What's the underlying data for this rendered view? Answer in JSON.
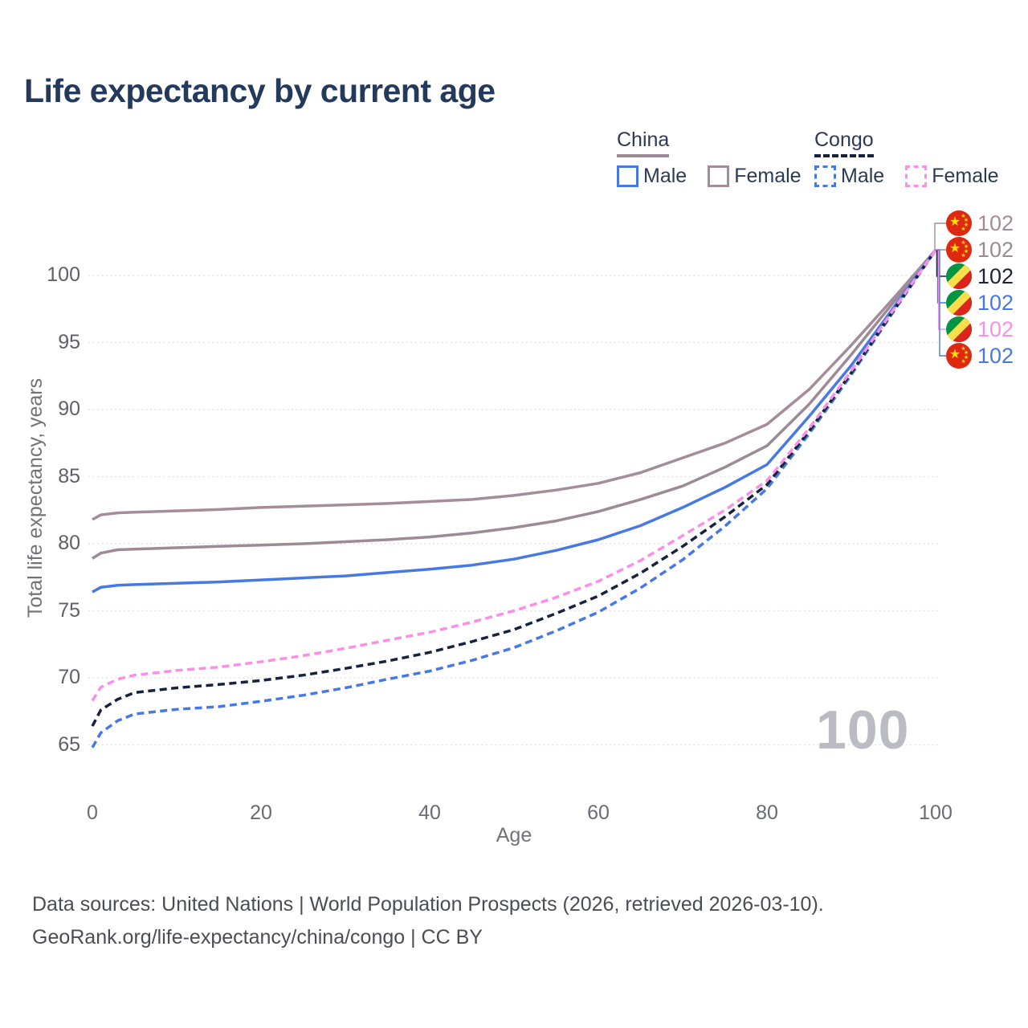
{
  "title": "Life expectancy by current age",
  "legend": {
    "groups": [
      {
        "label": "China",
        "line_style": "solid",
        "line_color": "#9c8a95",
        "items": [
          {
            "label": "Male",
            "color": "#4679e4",
            "dashed": false
          },
          {
            "label": "Female",
            "color": "#a48c9b",
            "dashed": false
          }
        ]
      },
      {
        "label": "Congo",
        "line_style": "dashed",
        "line_color": "#16233f",
        "items": [
          {
            "label": "Male",
            "color": "#4679e4",
            "dashed": true
          },
          {
            "label": "Female",
            "color": "#fa8fe8",
            "dashed": true
          }
        ]
      }
    ]
  },
  "watermark": "100",
  "footer": {
    "line1": "Data sources: United Nations | World Population Prospects (2026, retrieved 2026-03-10).",
    "line2": "GeoRank.org/life-expectancy/china/congo | CC BY"
  },
  "chart_data": {
    "type": "line",
    "title": "Life expectancy by current age",
    "xlabel": "Age",
    "ylabel": "Total life expectancy, years",
    "x_ticks": [
      0,
      20,
      40,
      60,
      80,
      100
    ],
    "y_ticks": [
      65,
      70,
      75,
      80,
      85,
      90,
      95,
      100
    ],
    "xlim": [
      0,
      100
    ],
    "ylim": [
      63,
      103
    ],
    "grid": "horizontal-dotted",
    "legend_position": "top-right",
    "x": [
      0,
      1,
      3,
      5,
      10,
      15,
      20,
      25,
      30,
      35,
      40,
      45,
      50,
      55,
      60,
      65,
      70,
      75,
      80,
      85,
      90,
      95,
      100
    ],
    "series": [
      {
        "name": "China Female",
        "country": "China",
        "group": "Female",
        "color": "#a48c9b",
        "dashed": false,
        "values": [
          81.8,
          82.15,
          82.3,
          82.35,
          82.45,
          82.55,
          82.7,
          82.8,
          82.9,
          83.0,
          83.15,
          83.3,
          83.6,
          84.0,
          84.5,
          85.3,
          86.4,
          87.5,
          88.9,
          91.5,
          94.8,
          98.3,
          101.9
        ]
      },
      {
        "name": "China Both sexes",
        "country": "China",
        "group": "Both",
        "color": "#9c8a95",
        "dashed": false,
        "values": [
          78.9,
          79.3,
          79.55,
          79.6,
          79.7,
          79.8,
          79.9,
          80.0,
          80.15,
          80.3,
          80.5,
          80.8,
          81.2,
          81.7,
          82.4,
          83.3,
          84.3,
          85.7,
          87.3,
          90.4,
          94.1,
          98.0,
          101.9
        ]
      },
      {
        "name": "China Male",
        "country": "China",
        "group": "Male",
        "color": "#4679e4",
        "dashed": false,
        "values": [
          76.4,
          76.75,
          76.9,
          76.95,
          77.05,
          77.15,
          77.3,
          77.45,
          77.6,
          77.85,
          78.1,
          78.4,
          78.85,
          79.5,
          80.3,
          81.35,
          82.7,
          84.2,
          85.9,
          89.5,
          93.3,
          97.6,
          101.9
        ]
      },
      {
        "name": "Congo Female",
        "country": "Congo",
        "group": "Female",
        "color": "#fa8fe8",
        "dashed": true,
        "values": [
          68.3,
          69.3,
          69.9,
          70.2,
          70.55,
          70.8,
          71.2,
          71.65,
          72.2,
          72.8,
          73.4,
          74.15,
          75.0,
          76.0,
          77.2,
          78.75,
          80.6,
          82.5,
          84.7,
          88.6,
          92.9,
          97.45,
          101.9
        ]
      },
      {
        "name": "Congo Both sexes",
        "country": "Congo",
        "group": "Both",
        "color": "#16233f",
        "dashed": true,
        "values": [
          66.4,
          67.6,
          68.4,
          68.9,
          69.25,
          69.5,
          69.8,
          70.2,
          70.7,
          71.25,
          71.9,
          72.7,
          73.6,
          74.8,
          76.1,
          77.8,
          79.8,
          82.0,
          84.4,
          88.4,
          92.75,
          97.4,
          101.9
        ]
      },
      {
        "name": "Congo Male",
        "country": "Congo",
        "group": "Male",
        "color": "#4679e4",
        "dashed": true,
        "values": [
          64.8,
          65.9,
          66.8,
          67.3,
          67.65,
          67.85,
          68.25,
          68.7,
          69.25,
          69.9,
          70.5,
          71.3,
          72.25,
          73.5,
          74.9,
          76.7,
          78.8,
          81.3,
          84.1,
          88.2,
          92.6,
          97.3,
          101.9
        ]
      }
    ],
    "end_labels": [
      {
        "value": "102",
        "flag": "china",
        "series": "China Female",
        "color": "#a48c9b"
      },
      {
        "value": "102",
        "flag": "china",
        "series": "China Both sexes",
        "color": "#9c8a95"
      },
      {
        "value": "102",
        "flag": "congo",
        "series": "Congo Both sexes",
        "color": "#1b2435"
      },
      {
        "value": "102",
        "flag": "congo",
        "series": "Congo Male",
        "color": "#4679e4"
      },
      {
        "value": "102",
        "flag": "congo",
        "series": "Congo Female",
        "color": "#fa8fe8"
      },
      {
        "value": "102",
        "flag": "china",
        "series": "China Male",
        "color": "#4679e4"
      }
    ]
  }
}
